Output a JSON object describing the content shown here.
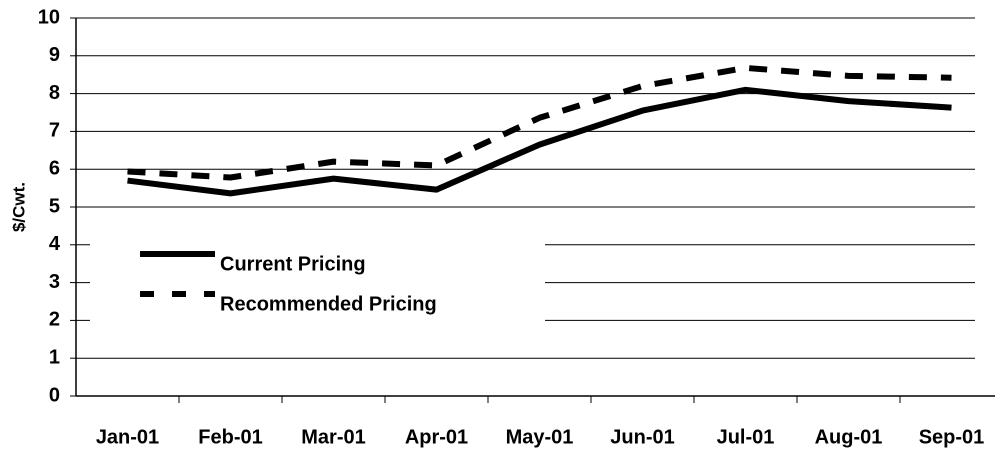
{
  "chart_data": {
    "type": "line",
    "y_label": "$/Cwt.",
    "categories": [
      "Jan-01",
      "Feb-01",
      "Mar-01",
      "Apr-01",
      "May-01",
      "Jun-01",
      "Jul-01",
      "Aug-01",
      "Sep-01"
    ],
    "series": [
      {
        "name": "Current Pricing",
        "color": "#000000",
        "dash": false,
        "values": [
          5.7,
          5.36,
          5.75,
          5.46,
          6.65,
          7.55,
          8.1,
          7.8,
          7.63
        ]
      },
      {
        "name": "Recommended Pricing",
        "color": "#000000",
        "dash": true,
        "values": [
          5.94,
          5.78,
          6.2,
          6.1,
          7.36,
          8.2,
          8.68,
          8.47,
          8.42
        ]
      }
    ],
    "ylim": [
      0,
      10
    ],
    "yticks": [
      0,
      1,
      2,
      3,
      4,
      5,
      6,
      7,
      8,
      9,
      10
    ],
    "grid": true
  }
}
